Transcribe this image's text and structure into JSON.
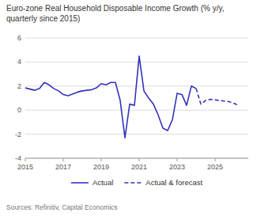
{
  "chart_data": {
    "type": "line",
    "title": "Euro-zone Real Household Disposable Income Growth (% y/y,\nquarterly since 2015)",
    "source": "Sources: Refinitiv, Capital Economics",
    "xlim": [
      2015.0,
      2026.75
    ],
    "xticks": [
      2015,
      2017,
      2019,
      2021,
      2023,
      2025
    ],
    "ylim": [
      -4,
      6
    ],
    "yticks": [
      -4,
      -2,
      0,
      2,
      4,
      6
    ],
    "grid": true,
    "legend": "bottom",
    "series": [
      {
        "name": "Actual",
        "color": "#3333bb",
        "line_style": "solid",
        "x": [
          2015.0,
          2015.25,
          2015.5,
          2015.75,
          2016.0,
          2016.25,
          2016.5,
          2016.75,
          2017.0,
          2017.25,
          2017.5,
          2017.75,
          2018.0,
          2018.25,
          2018.5,
          2018.75,
          2019.0,
          2019.25,
          2019.5,
          2019.75,
          2020.0,
          2020.25,
          2020.5,
          2020.75,
          2021.0,
          2021.25,
          2021.5,
          2021.75,
          2022.0,
          2022.25,
          2022.5,
          2022.75,
          2023.0,
          2023.25,
          2023.5,
          2023.75,
          2024.0
        ],
        "values": [
          1.85,
          1.75,
          1.65,
          1.8,
          2.3,
          2.1,
          1.8,
          1.6,
          1.3,
          1.2,
          1.35,
          1.5,
          1.6,
          1.65,
          1.7,
          1.85,
          2.2,
          2.1,
          2.3,
          2.3,
          0.8,
          -2.3,
          0.5,
          0.4,
          4.5,
          1.6,
          1.0,
          0.5,
          -0.4,
          -1.5,
          -1.7,
          -0.8,
          1.4,
          1.3,
          0.4,
          2.0,
          1.8
        ]
      },
      {
        "name": "Actual & forecast",
        "color": "#3333bb",
        "line_style": "dashed",
        "x": [
          2024.0,
          2024.25,
          2024.5,
          2024.75,
          2025.0,
          2025.25,
          2025.5,
          2025.75,
          2026.0,
          2026.25
        ],
        "values": [
          1.8,
          0.5,
          0.8,
          0.9,
          0.85,
          0.8,
          0.75,
          0.7,
          0.55,
          0.4
        ]
      }
    ]
  }
}
